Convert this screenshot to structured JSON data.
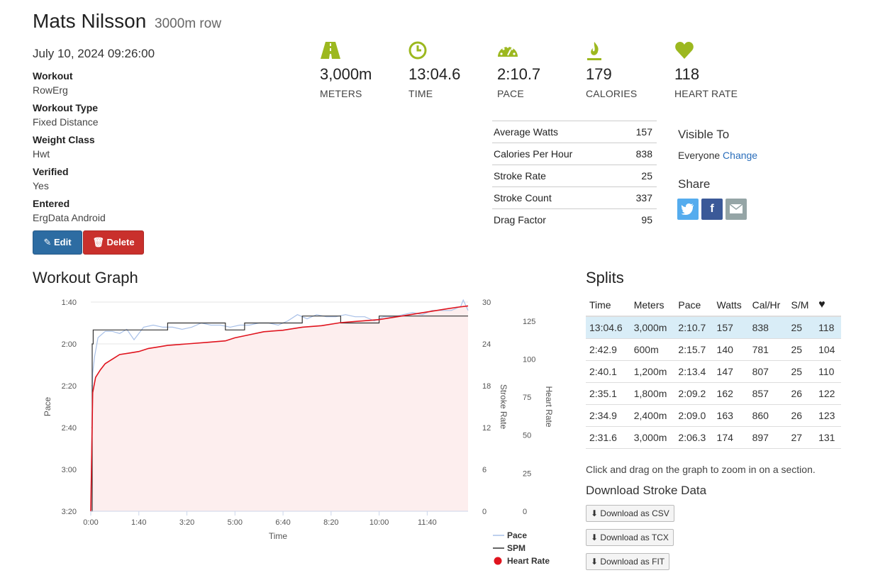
{
  "header": {
    "name": "Mats Nilsson",
    "subtitle": "3000m row"
  },
  "date": "July 10, 2024 09:26:00",
  "meta": [
    {
      "label": "Workout",
      "value": "RowErg"
    },
    {
      "label": "Workout Type",
      "value": "Fixed Distance"
    },
    {
      "label": "Weight Class",
      "value": "Hwt"
    },
    {
      "label": "Verified",
      "value": "Yes"
    },
    {
      "label": "Entered",
      "value": "ErgData Android"
    }
  ],
  "buttons": {
    "edit": "Edit",
    "delete": "Delete"
  },
  "stats": [
    {
      "icon": "road-icon",
      "value": "3,000m",
      "label": "METERS"
    },
    {
      "icon": "clock-icon",
      "value": "13:04.6",
      "label": "TIME"
    },
    {
      "icon": "speedometer-icon",
      "value": "2:10.7",
      "label": "PACE"
    },
    {
      "icon": "flame-icon",
      "value": "179",
      "label": "CALORIES"
    },
    {
      "icon": "heart-icon",
      "value": "118",
      "label": "HEART RATE"
    }
  ],
  "accent_color": "#9cb81f",
  "details": [
    {
      "label": "Average Watts",
      "value": "157"
    },
    {
      "label": "Calories Per Hour",
      "value": "838"
    },
    {
      "label": "Stroke Rate",
      "value": "25"
    },
    {
      "label": "Stroke Count",
      "value": "337"
    },
    {
      "label": "Drag Factor",
      "value": "95"
    }
  ],
  "visibility": {
    "title": "Visible To",
    "value": "Everyone",
    "change_link": "Change"
  },
  "share": {
    "title": "Share",
    "buttons": [
      "twitter-icon",
      "facebook-icon",
      "email-icon"
    ]
  },
  "graph": {
    "title": "Workout Graph"
  },
  "splits": {
    "title": "Splits",
    "columns": [
      "Time",
      "Meters",
      "Pace",
      "Watts",
      "Cal/Hr",
      "S/M",
      "heart-icon"
    ],
    "rows": [
      [
        "13:04.6",
        "3,000m",
        "2:10.7",
        "157",
        "838",
        "25",
        "118"
      ],
      [
        "2:42.9",
        "600m",
        "2:15.7",
        "140",
        "781",
        "25",
        "104"
      ],
      [
        "2:40.1",
        "1,200m",
        "2:13.4",
        "147",
        "807",
        "25",
        "110"
      ],
      [
        "2:35.1",
        "1,800m",
        "2:09.2",
        "162",
        "857",
        "26",
        "122"
      ],
      [
        "2:34.9",
        "2,400m",
        "2:09.0",
        "163",
        "860",
        "26",
        "123"
      ],
      [
        "2:31.6",
        "3,000m",
        "2:06.3",
        "174",
        "897",
        "27",
        "131"
      ]
    ]
  },
  "zoom_note": "Click and drag on the graph to zoom in on a section.",
  "download": {
    "title": "Download Stroke Data",
    "buttons": [
      "Download as CSV",
      "Download as TCX",
      "Download as FIT"
    ]
  },
  "chart_data": {
    "type": "line",
    "xlabel": "Time",
    "x_ticks": [
      "0:00",
      "1:40",
      "3:20",
      "5:00",
      "6:40",
      "8:20",
      "10:00",
      "11:40"
    ],
    "x_range_seconds": [
      0,
      785
    ],
    "y_left": {
      "label": "Pace",
      "ticks": [
        "1:40",
        "2:00",
        "2:20",
        "2:40",
        "3:00",
        "3:20"
      ],
      "range_seconds": [
        100,
        200
      ],
      "inverted": true
    },
    "y_right_1": {
      "label": "Stroke Rate",
      "ticks": [
        "30",
        "24",
        "18",
        "12",
        "6",
        "0"
      ],
      "range": [
        0,
        30
      ]
    },
    "y_right_2": {
      "label": "Heart Rate",
      "ticks": [
        "125",
        "100",
        "75",
        "50",
        "25",
        "0"
      ],
      "range": [
        0,
        137.5
      ]
    },
    "legend": [
      "Pace",
      "SPM",
      "Heart Rate"
    ],
    "series": [
      {
        "name": "Pace",
        "color": "#a8c0e8",
        "t": [
          0,
          4,
          8,
          15,
          30,
          45,
          60,
          75,
          90,
          110,
          130,
          150,
          170,
          190,
          210,
          230,
          250,
          270,
          290,
          310,
          330,
          350,
          370,
          390,
          410,
          430,
          450,
          470,
          490,
          510,
          530,
          550,
          570,
          590,
          610,
          630,
          650,
          670,
          690,
          710,
          730,
          750,
          760,
          770,
          775,
          785
        ],
        "values": [
          200,
          134,
          126,
          117,
          114,
          114,
          115,
          113,
          118,
          112,
          111,
          112,
          112,
          113,
          112,
          110,
          111,
          111,
          112,
          111,
          111,
          110,
          110,
          111,
          109,
          106,
          108,
          106,
          107,
          107,
          106,
          107,
          107,
          109,
          107,
          107,
          106,
          105,
          106,
          104,
          104,
          104,
          103,
          102,
          99,
          104
        ]
      },
      {
        "name": "SPM",
        "color": "#333333",
        "t": [
          0,
          3,
          5,
          20,
          40,
          60,
          80,
          100,
          130,
          160,
          200,
          240,
          280,
          320,
          360,
          400,
          440,
          480,
          520,
          560,
          600,
          640,
          680,
          720,
          760,
          785
        ],
        "values": [
          0,
          24,
          26,
          26,
          26,
          26,
          26,
          26,
          26,
          27,
          27,
          27,
          26,
          27,
          27,
          27,
          28,
          28,
          27,
          27,
          28,
          28,
          28,
          28,
          28,
          28
        ]
      },
      {
        "name": "Heart Rate",
        "color": "#e0141e",
        "t": [
          0,
          4,
          10,
          20,
          30,
          40,
          50,
          60,
          80,
          100,
          120,
          140,
          160,
          200,
          240,
          280,
          300,
          330,
          360,
          400,
          440,
          480,
          520,
          560,
          600,
          640,
          680,
          720,
          760,
          785
        ],
        "values": [
          0,
          78,
          88,
          93,
          97,
          99,
          101,
          103,
          104,
          105,
          107,
          108,
          109,
          110,
          111,
          112,
          114,
          116,
          118,
          119,
          121,
          122,
          124,
          125,
          126,
          128,
          130,
          132,
          134,
          135
        ]
      }
    ]
  }
}
